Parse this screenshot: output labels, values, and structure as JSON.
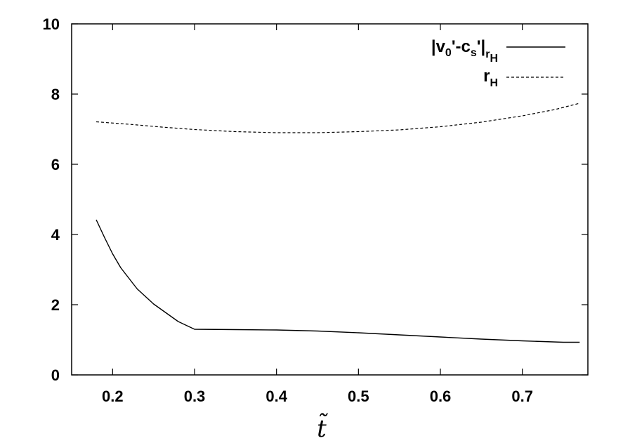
{
  "chart_data": {
    "type": "line",
    "title": "",
    "xlabel": "t̃",
    "ylabel": "",
    "xlim": [
      0.15,
      0.78
    ],
    "ylim": [
      0,
      10
    ],
    "xticks": [
      0.2,
      0.3,
      0.4,
      0.5,
      0.6,
      0.7
    ],
    "xtick_labels": [
      "0.2",
      "0.3",
      "0.4",
      "0.5",
      "0.6",
      "0.7"
    ],
    "yticks": [
      0,
      2,
      4,
      6,
      8,
      10
    ],
    "ytick_labels": [
      "0",
      "2",
      "4",
      "6",
      "8",
      "10"
    ],
    "grid": false,
    "legend_position": "top-right",
    "series": [
      {
        "name": "|v0'-cs'|rH",
        "legend": {
          "main": "|v",
          "sub1": "0",
          "mid": "'-c",
          "sub2": "s",
          "end": "'|",
          "sub3": "r",
          "subsub3": "H"
        },
        "style": "solid",
        "color": "#000000",
        "x": [
          0.18,
          0.19,
          0.2,
          0.21,
          0.23,
          0.25,
          0.28,
          0.3,
          0.35,
          0.4,
          0.45,
          0.5,
          0.55,
          0.6,
          0.65,
          0.7,
          0.75,
          0.77
        ],
        "y": [
          4.42,
          3.92,
          3.45,
          3.05,
          2.45,
          2.02,
          1.52,
          1.3,
          1.29,
          1.28,
          1.25,
          1.2,
          1.14,
          1.08,
          1.02,
          0.97,
          0.93,
          0.93
        ]
      },
      {
        "name": "rH",
        "legend": {
          "main": "r",
          "sub1": "H"
        },
        "style": "dashed",
        "color": "#000000",
        "x": [
          0.18,
          0.22,
          0.26,
          0.3,
          0.35,
          0.4,
          0.45,
          0.5,
          0.55,
          0.6,
          0.65,
          0.7,
          0.74,
          0.77
        ],
        "y": [
          7.21,
          7.14,
          7.06,
          6.99,
          6.93,
          6.9,
          6.9,
          6.93,
          6.98,
          7.07,
          7.2,
          7.38,
          7.56,
          7.74
        ]
      }
    ]
  }
}
